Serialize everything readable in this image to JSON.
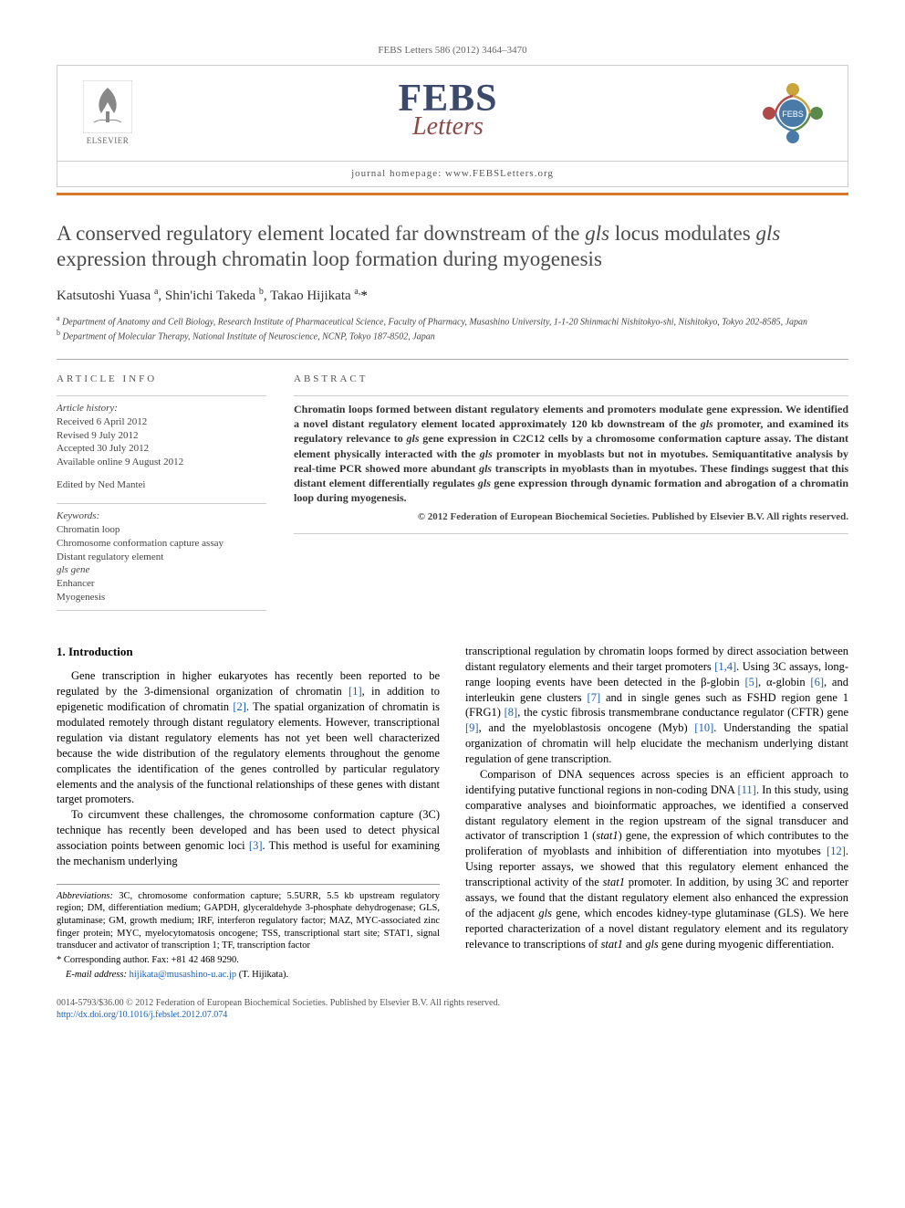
{
  "journal_ref": "FEBS Letters 586 (2012) 3464–3470",
  "header": {
    "publisher": "ELSEVIER",
    "logo_main": "FEBS",
    "logo_sub": "Letters",
    "homepage_label": "journal homepage: www.FEBSLetters.org"
  },
  "title_parts": {
    "p1": "A conserved regulatory element located far downstream of the ",
    "g1": "gls",
    "p2": " locus modulates ",
    "g2": "gls",
    "p3": " expression through chromatin loop formation during myogenesis"
  },
  "authors_html": "Katsutoshi Yuasa <sup>a</sup>, Shin'ichi Takeda <sup>b</sup>, Takao Hijikata <sup>a,</sup><span class='star'>*</span>",
  "affiliations": {
    "a": "Department of Anatomy and Cell Biology, Research Institute of Pharmaceutical Science, Faculty of Pharmacy, Musashino University, 1-1-20 Shinmachi Nishitokyo-shi, Nishitokyo, Tokyo 202-8585, Japan",
    "b": "Department of Molecular Therapy, National Institute of Neuroscience, NCNP, Tokyo 187-8502, Japan"
  },
  "info": {
    "heading": "ARTICLE INFO",
    "history_label": "Article history:",
    "received": "Received 6 April 2012",
    "revised": "Revised 9 July 2012",
    "accepted": "Accepted 30 July 2012",
    "online": "Available online 9 August 2012",
    "edited": "Edited by Ned Mantei",
    "keywords_label": "Keywords:",
    "keywords": [
      "Chromatin loop",
      "Chromosome conformation capture assay",
      "Distant regulatory element",
      "gls gene",
      "Enhancer",
      "Myogenesis"
    ]
  },
  "abstract": {
    "heading": "ABSTRACT",
    "text_parts": [
      "Chromatin loops formed between distant regulatory elements and promoters modulate gene expression. We identified a novel distant regulatory element located approximately 120 kb downstream of the ",
      " promoter, and examined its regulatory relevance to ",
      " gene expression in C2C12 cells by a chromosome conformation capture assay. The distant element physically interacted with the ",
      " promoter in myoblasts but not in myotubes. Semiquantitative analysis by real-time PCR showed more abundant ",
      " transcripts in myoblasts than in myotubes. These findings suggest that this distant element differentially regulates ",
      " gene expression through dynamic formation and abrogation of a chromatin loop during myogenesis."
    ],
    "gene": "gls",
    "copyright": "© 2012 Federation of European Biochemical Societies. Published by Elsevier B.V. All rights reserved."
  },
  "section1_heading": "1. Introduction",
  "intro": {
    "col1_p1": "Gene transcription in higher eukaryotes has recently been reported to be regulated by the 3-dimensional organization of chromatin [1], in addition to epigenetic modification of chromatin [2]. The spatial organization of chromatin is modulated remotely through distant regulatory elements. However, transcriptional regulation via distant regulatory elements has not yet been well characterized because the wide distribution of the regulatory elements throughout the genome complicates the identification of the genes controlled by particular regulatory elements and the analysis of the functional relationships of these genes with distant target promoters.",
    "col1_p2": "To circumvent these challenges, the chromosome conformation capture (3C) technique has recently been developed and has been used to detect physical association points between genomic loci [3]. This method is useful for examining the mechanism underlying",
    "col2_p1": "transcriptional regulation by chromatin loops formed by direct association between distant regulatory elements and their target promoters [1,4]. Using 3C assays, long-range looping events have been detected in the β-globin [5], α-globin [6], and interleukin gene clusters [7] and in single genes such as FSHD region gene 1 (FRG1) [8], the cystic fibrosis transmembrane conductance regulator (CFTR) gene [9], and the myeloblastosis oncogene (Myb) [10]. Understanding the spatial organization of chromatin will help elucidate the mechanism underlying distant regulation of gene transcription.",
    "col2_p2": "Comparison of DNA sequences across species is an efficient approach to identifying putative functional regions in non-coding DNA [11]. In this study, using comparative analyses and bioinformatic approaches, we identified a conserved distant regulatory element in the region upstream of the signal transducer and activator of transcription 1 (stat1) gene, the expression of which contributes to the proliferation of myoblasts and inhibition of differentiation into myotubes [12]. Using reporter assays, we showed that this regulatory element enhanced the transcriptional activity of the stat1 promoter. In addition, by using 3C and reporter assays, we found that the distant regulatory element also enhanced the expression of the adjacent gls gene, which encodes kidney-type glutaminase (GLS). We here reported characterization of a novel distant regulatory element and its regulatory relevance to transcriptions of stat1 and gls gene during myogenic differentiation."
  },
  "footnotes": {
    "abbrev_label": "Abbreviations:",
    "abbrev_text": " 3C, chromosome conformation capture; 5.5URR, 5.5 kb upstream regulatory region; DM, differentiation medium; GAPDH, glyceraldehyde 3-phosphate dehydrogenase; GLS, glutaminase; GM, growth medium; IRF, interferon regulatory factor; MAZ, MYC-associated zinc finger protein; MYC, myelocytomatosis oncogene; TSS, transcriptional start site; STAT1, signal transducer and activator of transcription 1; TF, transcription factor",
    "corr_label": "* Corresponding author. Fax: +81 42 468 9290.",
    "email_label": "E-mail address:",
    "email": "hijikata@musashino-u.ac.jp",
    "email_suffix": " (T. Hijikata)."
  },
  "footer": {
    "issn": "0014-5793/$36.00 © 2012 Federation of European Biochemical Societies. Published by Elsevier B.V. All rights reserved.",
    "doi": "http://dx.doi.org/10.1016/j.febslet.2012.07.074"
  },
  "colors": {
    "orange_rule": "#d97828",
    "febs_blue": "#3b4a6b",
    "febs_red": "#8a4a4a",
    "ref_link": "#1a5fb4",
    "border_gray": "#cccccc"
  }
}
